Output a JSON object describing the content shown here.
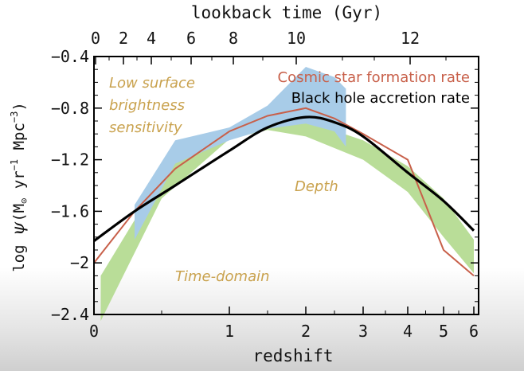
{
  "chart_data": {
    "type": "line",
    "title": "",
    "top_axis_label": "lookback time (Gyr)",
    "top_ticks": [
      "0",
      "2",
      "4",
      "6",
      "8",
      "10",
      "12"
    ],
    "xlabel": "redshift",
    "x_ticks": [
      "0",
      "1",
      "2",
      "3",
      "4",
      "5",
      "6"
    ],
    "ylabel_parts": [
      "log ",
      "ψ",
      "(M",
      "⊙",
      " yr",
      "−1",
      " Mpc",
      "−3",
      ")"
    ],
    "y_ticks": [
      "−0.4",
      "−0.8",
      "−1.2",
      "−1.6",
      "−2",
      "−2.4"
    ],
    "ylim": [
      -2.4,
      -0.4
    ],
    "legend": [
      {
        "name": "Cosmic star formation rate",
        "color": "#c8604a"
      },
      {
        "name": "Black hole accretion rate",
        "color": "#000000"
      }
    ],
    "series": [
      {
        "name": "Cosmic star formation rate",
        "color": "#c8604a",
        "points": [
          [
            0,
            -2.0
          ],
          [
            0.3,
            -1.6
          ],
          [
            0.6,
            -1.27
          ],
          [
            1.0,
            -0.98
          ],
          [
            1.5,
            -0.86
          ],
          [
            2.0,
            -0.8
          ],
          [
            2.5,
            -0.88
          ],
          [
            3.0,
            -1.0
          ],
          [
            4.0,
            -1.2
          ],
          [
            4.5,
            -1.55
          ],
          [
            5.0,
            -1.9
          ],
          [
            6.0,
            -2.1
          ]
        ]
      },
      {
        "name": "Black hole accretion rate",
        "color": "#000000",
        "points": [
          [
            0,
            -1.83
          ],
          [
            0.3,
            -1.6
          ],
          [
            0.6,
            -1.4
          ],
          [
            1.0,
            -1.13
          ],
          [
            1.5,
            -0.95
          ],
          [
            2.0,
            -0.87
          ],
          [
            2.5,
            -0.91
          ],
          [
            3.0,
            -1.02
          ],
          [
            4.0,
            -1.3
          ],
          [
            5.0,
            -1.52
          ],
          [
            6.0,
            -1.75
          ]
        ]
      }
    ],
    "bands": [
      {
        "name": "Low surface brightness sensitivity",
        "color": "#a8cce8",
        "points": [
          [
            0.3,
            -1.55
          ],
          [
            0.6,
            -1.05
          ],
          [
            1.0,
            -0.95
          ],
          [
            1.5,
            -0.78
          ],
          [
            2.0,
            -0.48
          ],
          [
            2.5,
            -0.56
          ],
          [
            2.7,
            -0.65
          ],
          [
            2.7,
            -1.1
          ],
          [
            2.5,
            -0.98
          ],
          [
            2.0,
            -0.92
          ],
          [
            1.5,
            -0.96
          ],
          [
            1.0,
            -1.05
          ],
          [
            0.6,
            -1.23
          ],
          [
            0.3,
            -1.82
          ]
        ]
      },
      {
        "name": "Depth",
        "color": "#b9dd98",
        "points": [
          [
            0.05,
            -2.1
          ],
          [
            0.6,
            -1.15
          ],
          [
            1.0,
            -1.0
          ],
          [
            1.5,
            -0.92
          ],
          [
            2.0,
            -0.9
          ],
          [
            3.0,
            -1.05
          ],
          [
            4.0,
            -1.25
          ],
          [
            5.0,
            -1.5
          ],
          [
            6.0,
            -1.82
          ],
          [
            6.0,
            -2.08
          ],
          [
            5.0,
            -1.8
          ],
          [
            4.0,
            -1.45
          ],
          [
            3.0,
            -1.2
          ],
          [
            2.0,
            -1.02
          ],
          [
            1.5,
            -0.97
          ],
          [
            1.0,
            -1.04
          ],
          [
            0.5,
            -1.5
          ],
          [
            0.05,
            -2.45
          ]
        ]
      }
    ],
    "annotations": [
      {
        "lines": [
          "Low surface",
          "brightness",
          "sensitivity"
        ],
        "color": "#c9a24e"
      },
      {
        "lines": [
          "Depth"
        ],
        "color": "#c9a24e"
      },
      {
        "lines": [
          "Time-domain"
        ],
        "color": "#c9a24e"
      }
    ]
  }
}
